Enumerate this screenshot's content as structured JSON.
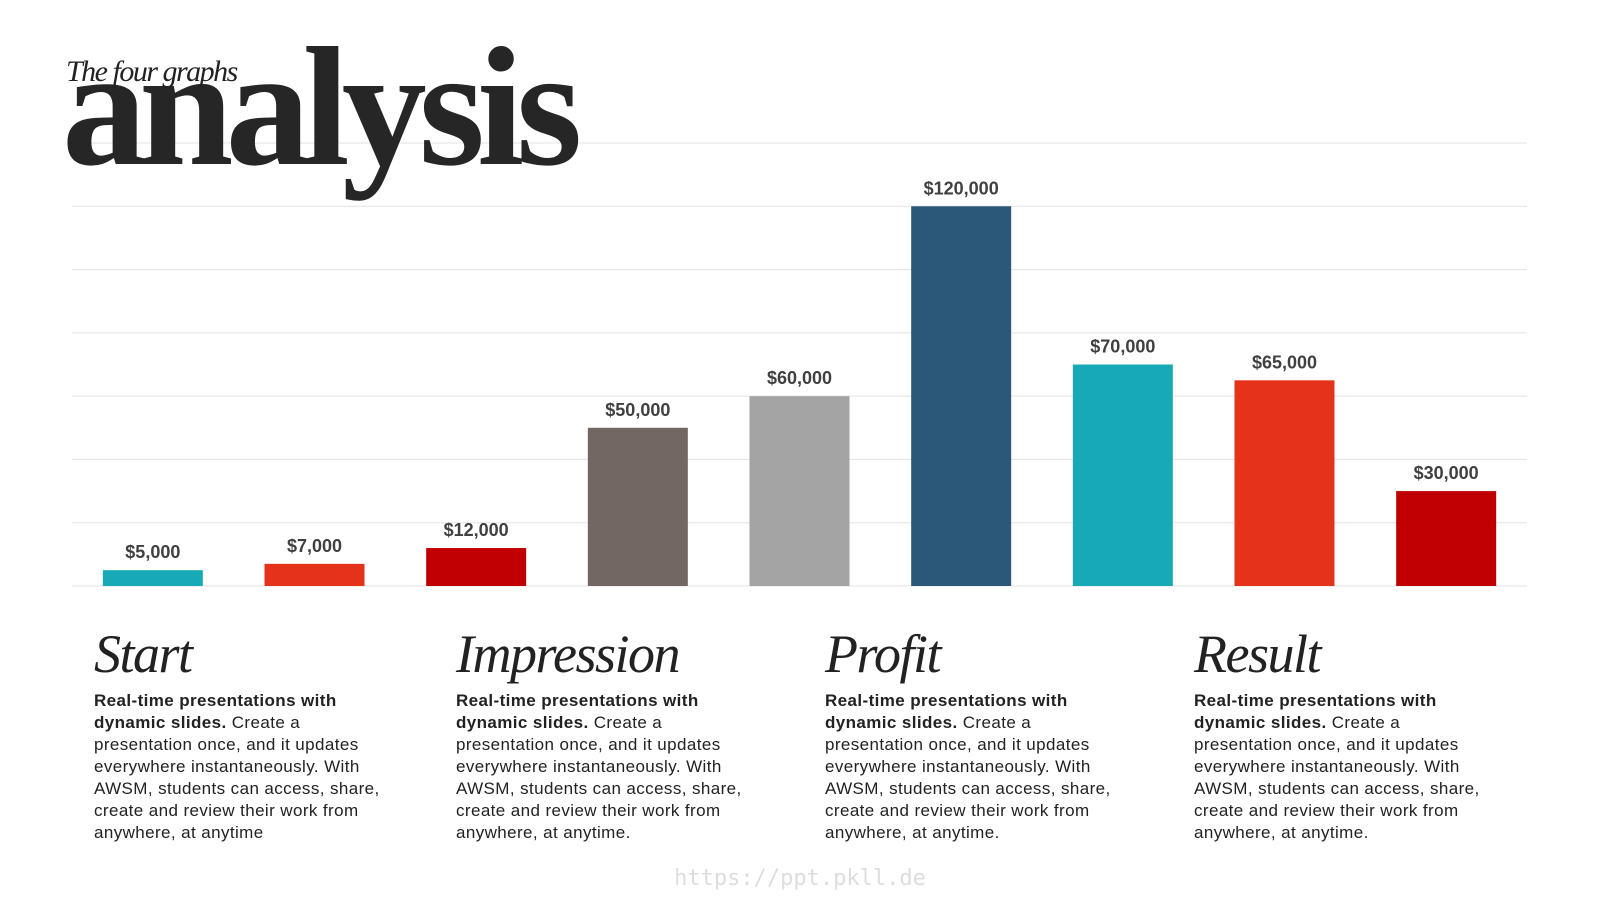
{
  "header": {
    "subtitle": "The four graphs",
    "title": "analysis"
  },
  "chart_data": {
    "type": "bar",
    "categories": [
      null,
      null,
      null,
      null,
      null,
      null,
      null,
      null,
      null
    ],
    "values": [
      5000,
      7000,
      12000,
      50000,
      60000,
      120000,
      70000,
      65000,
      30000
    ],
    "value_labels": [
      "$5,000",
      "$7,000",
      "$12,000",
      "$50,000",
      "$60,000",
      "$120,000",
      "$70,000",
      "$65,000",
      "$30,000"
    ],
    "colors": [
      "#17a9b5",
      "#e5321b",
      "#c00000",
      "#726763",
      "#a5a4a4",
      "#2b5779",
      "#17a9b5",
      "#e5321b",
      "#c00000"
    ],
    "ylim": [
      0,
      140000
    ],
    "yticks": [
      0,
      20000,
      40000,
      60000,
      80000,
      100000,
      120000,
      140000
    ],
    "grid": true
  },
  "sections": [
    {
      "title": "Start",
      "lead": "Real-time presentations with dynamic slides.",
      "text": " Create a presentation once, and it updates everywhere instantaneously. With AWSM, students can access, share, create and review their work from anywhere, at anytime"
    },
    {
      "title": "Impression",
      "lead": "Real-time presentations with dynamic slides.",
      "text": " Create a presentation once, and it updates everywhere instantaneously. With AWSM, students can access, share, create and review their work from anywhere, at anytime."
    },
    {
      "title": "Profit",
      "lead": "Real-time presentations with dynamic slides.",
      "text": " Create a presentation once, and it updates everywhere instantaneously. With AWSM, students can access, share, create and review their work from anywhere, at anytime."
    },
    {
      "title": "Result",
      "lead": "Real-time presentations with dynamic slides.",
      "text": " Create a presentation once, and it updates everywhere instantaneously. With AWSM, students can access, share, create and review their work from anywhere, at anytime."
    }
  ],
  "footer": "https://ppt.pkll.de"
}
